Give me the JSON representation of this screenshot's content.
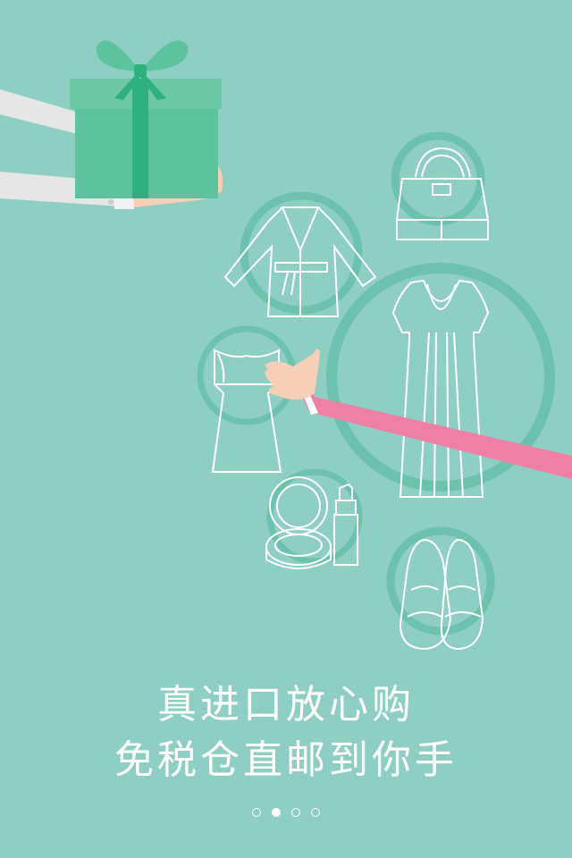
{
  "slogan": {
    "line1": "真进口放心购",
    "line2": "免税仓直邮到你手"
  },
  "pager": {
    "total": 4,
    "active_index": 1
  },
  "colors": {
    "background": "#8fcfc3",
    "circle_accent": "#6cc2aa",
    "gift_box": "#5cc39e",
    "gift_ribbon": "#2fb17f",
    "left_sleeve": "#e6e6e6",
    "right_sleeve": "#ee7fa5",
    "skin": "#f6cfb8",
    "outline": "#ffffff"
  },
  "icons": [
    "gift-box-icon",
    "handbag-icon",
    "coat-icon",
    "dress-icon",
    "tube-dress-icon",
    "compact-powder-icon",
    "lipstick-icon",
    "shoes-icon"
  ]
}
